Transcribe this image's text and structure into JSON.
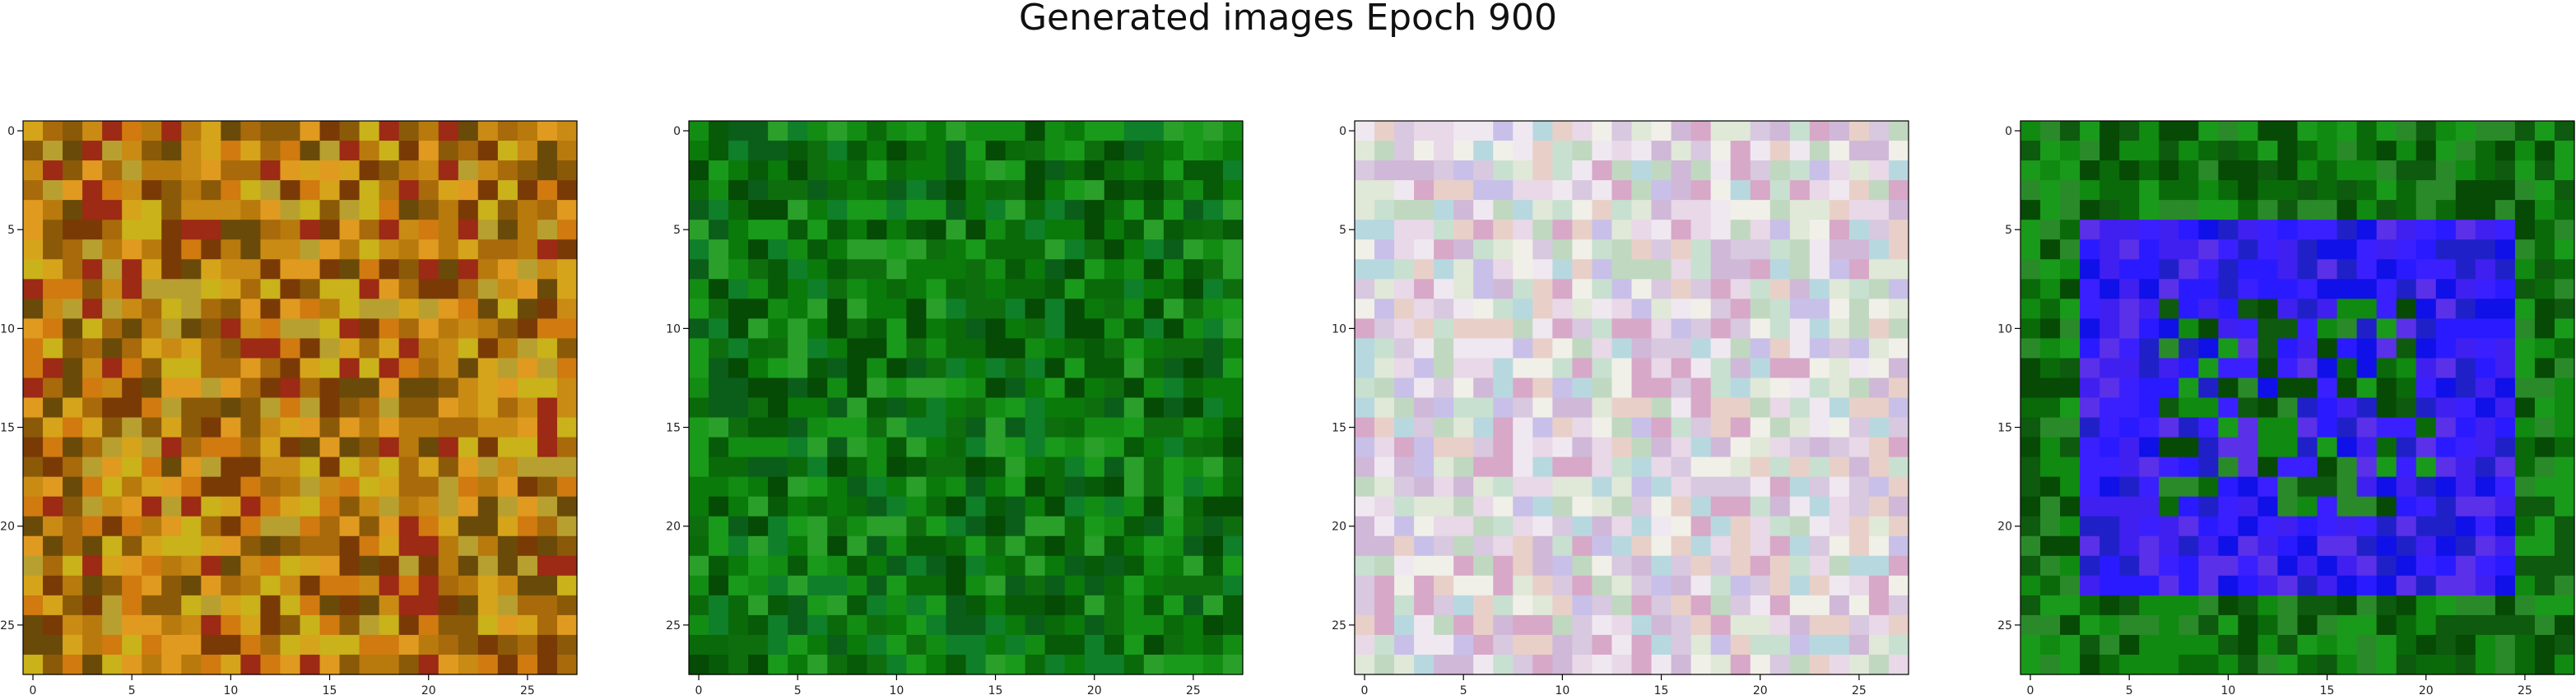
{
  "figure": {
    "title": "Generated images Epoch 900"
  },
  "chart_data": [
    {
      "type": "heatmap",
      "description": "28x28 RGB image (approximate), panel 1",
      "xlim": [
        -0.5,
        27.5
      ],
      "ylim": [
        27.5,
        -0.5
      ],
      "xticks": [
        0,
        5,
        10,
        15,
        20,
        25
      ],
      "yticks": [
        0,
        5,
        10,
        15,
        20,
        25
      ],
      "palette": [
        "#c98b14",
        "#b87a0c",
        "#d6a41a",
        "#a86a0a",
        "#8a5a08",
        "#c9b21a",
        "#e09a20",
        "#7a3a06",
        "#9c2a14",
        "#6a4a08",
        "#d07a10",
        "#b8a030"
      ],
      "seed": 11
    },
    {
      "type": "heatmap",
      "description": "28x28 RGB image (approximate), panel 2",
      "xlim": [
        -0.5,
        27.5
      ],
      "ylim": [
        27.5,
        -0.5
      ],
      "xticks": [
        0,
        5,
        10,
        15,
        20,
        25
      ],
      "yticks": [
        0,
        5,
        10,
        15,
        20,
        25
      ],
      "palette": [
        "#0a7a0a",
        "#0e6e0e",
        "#138c13",
        "#075a07",
        "#1a9a1a",
        "#0b5e1a",
        "#054a05",
        "#2aa02a",
        "#0f7f2a",
        "#0a6a0a"
      ],
      "seed": 23
    },
    {
      "type": "heatmap",
      "description": "28x28 RGB image (approximate), panel 3",
      "xlim": [
        -0.5,
        27.5
      ],
      "ylim": [
        27.5,
        -0.5
      ],
      "xticks": [
        0,
        5,
        10,
        15,
        20,
        25
      ],
      "yticks": [
        0,
        5,
        10,
        15,
        20,
        25
      ],
      "palette": [
        "#e8d8e8",
        "#d8c8e0",
        "#c8e0d0",
        "#f0e8f0",
        "#d0b8d8",
        "#e0e8d8",
        "#c8c0e8",
        "#e8d0c8",
        "#b8d8e0",
        "#f0f0e8",
        "#d8a8c8",
        "#c0d8c0"
      ],
      "seed": 37
    },
    {
      "type": "heatmap",
      "description": "28x28 RGB image (approximate), panel 4",
      "xlim": [
        -0.5,
        27.5
      ],
      "ylim": [
        27.5,
        -0.5
      ],
      "xticks": [
        0,
        5,
        10,
        15,
        20,
        25
      ],
      "yticks": [
        0,
        5,
        10,
        15,
        20,
        25
      ],
      "palette": [
        "#0a6a0a",
        "#108a10",
        "#064a06",
        "#1a9a1a",
        "#0e5a0e",
        "#2a8a2a"
      ],
      "accent_palette": [
        "#2a1aff",
        "#1010e8",
        "#3a20ff",
        "#5a30e8",
        "#2020c8",
        "#4020f0"
      ],
      "accent_region": {
        "rows": [
          5,
          23
        ],
        "cols": [
          3,
          24
        ]
      },
      "seed": 51
    }
  ]
}
